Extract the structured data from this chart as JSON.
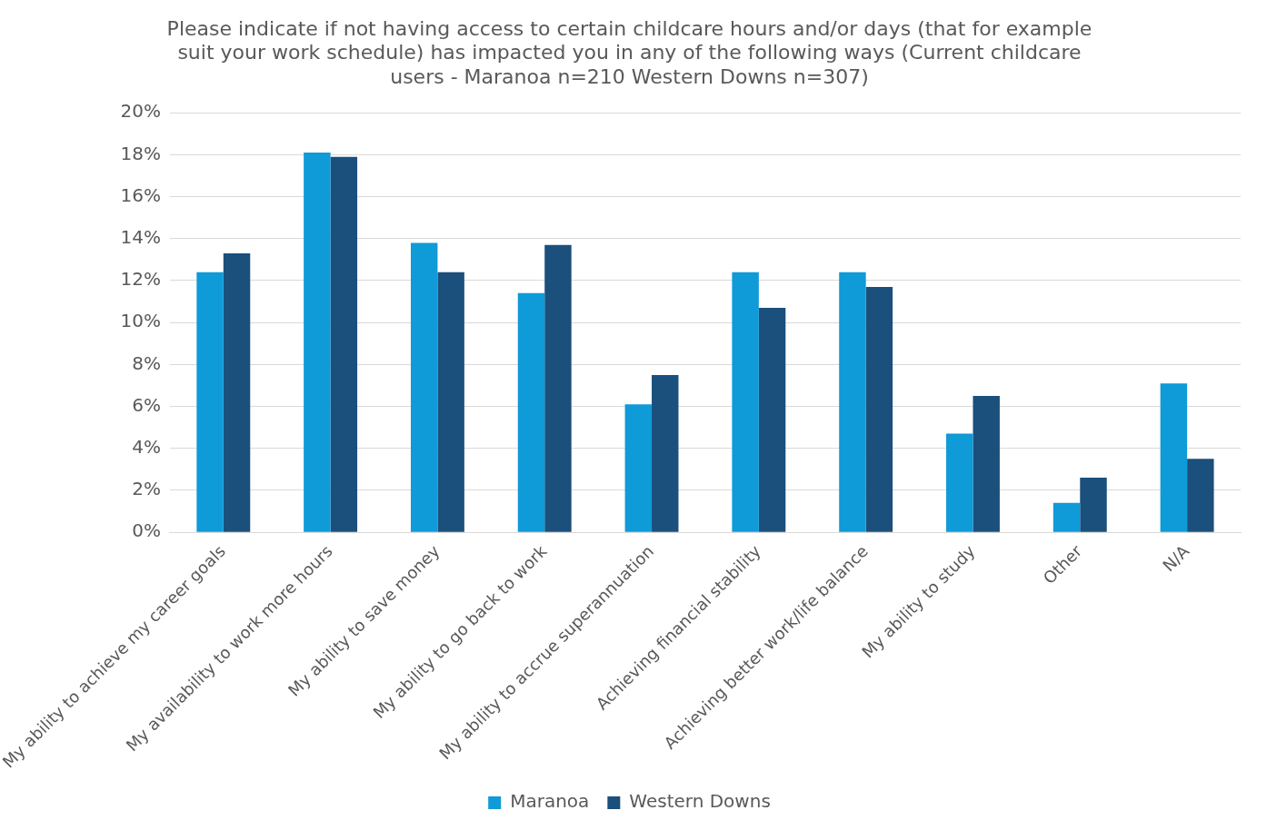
{
  "chart_data": {
    "type": "bar",
    "title": "Please indicate if not having access to certain childcare hours and/or days (that for example suit your work schedule) has impacted you in any of the following ways (Current childcare users - Maranoa n=210 Western Downs n=307)",
    "categories": [
      "My ability to achieve my career goals",
      "My availability to work more hours",
      "My ability to save money",
      "My ability to go back to work",
      "My ability to accrue superannuation",
      "Achieving financial stability",
      "Achieving better work/life balance",
      "My ability to study",
      "Other",
      "N/A"
    ],
    "series": [
      {
        "name": "Maranoa",
        "color": "#0f9ad8",
        "values": [
          12.4,
          18.1,
          13.8,
          11.4,
          6.1,
          12.4,
          12.4,
          4.7,
          1.4,
          7.1
        ]
      },
      {
        "name": "Western Downs",
        "color": "#1b4f7c",
        "values": [
          13.3,
          17.9,
          12.4,
          13.7,
          7.5,
          10.7,
          11.7,
          6.5,
          2.6,
          3.5
        ]
      }
    ],
    "ylim": [
      0,
      20
    ],
    "yticks": [
      {
        "value": 0,
        "label": "0%"
      },
      {
        "value": 2,
        "label": "2%"
      },
      {
        "value": 4,
        "label": "4%"
      },
      {
        "value": 6,
        "label": "6%"
      },
      {
        "value": 8,
        "label": "8%"
      },
      {
        "value": 10,
        "label": "10%"
      },
      {
        "value": 12,
        "label": "12%"
      },
      {
        "value": 14,
        "label": "14%"
      },
      {
        "value": 16,
        "label": "16%"
      },
      {
        "value": 18,
        "label": "18%"
      },
      {
        "value": 20,
        "label": "20%"
      }
    ],
    "grid": "y",
    "legend": "bottom"
  }
}
